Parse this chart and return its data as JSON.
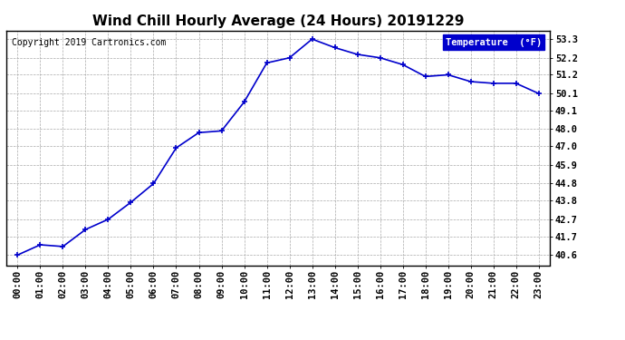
{
  "title": "Wind Chill Hourly Average (24 Hours) 20191229",
  "copyright": "Copyright 2019 Cartronics.com",
  "legend_label": "Temperature  (°F)",
  "line_color": "#0000cc",
  "bg_color": "#ffffff",
  "plot_bg_color": "#ffffff",
  "x_labels": [
    "00:00",
    "01:00",
    "02:00",
    "03:00",
    "04:00",
    "05:00",
    "06:00",
    "07:00",
    "08:00",
    "09:00",
    "10:00",
    "11:00",
    "12:00",
    "13:00",
    "14:00",
    "15:00",
    "16:00",
    "17:00",
    "18:00",
    "19:00",
    "20:00",
    "21:00",
    "22:00",
    "23:00"
  ],
  "y_values": [
    40.6,
    41.2,
    41.1,
    42.1,
    42.7,
    43.7,
    44.8,
    46.9,
    47.8,
    47.9,
    49.6,
    51.9,
    52.2,
    53.3,
    52.8,
    52.4,
    52.2,
    51.8,
    51.1,
    51.2,
    50.8,
    50.7,
    50.7,
    50.1
  ],
  "yticks": [
    40.6,
    41.7,
    42.7,
    43.8,
    44.8,
    45.9,
    47.0,
    48.0,
    49.1,
    50.1,
    51.2,
    52.2,
    53.3
  ],
  "ylim": [
    40.0,
    53.8
  ],
  "grid_color": "#aaaaaa",
  "marker": "+",
  "marker_size": 5,
  "line_width": 1.2,
  "legend_bg": "#0000cc",
  "legend_text_color": "#ffffff",
  "title_fontsize": 11,
  "tick_fontsize": 7.5,
  "copyright_fontsize": 7
}
